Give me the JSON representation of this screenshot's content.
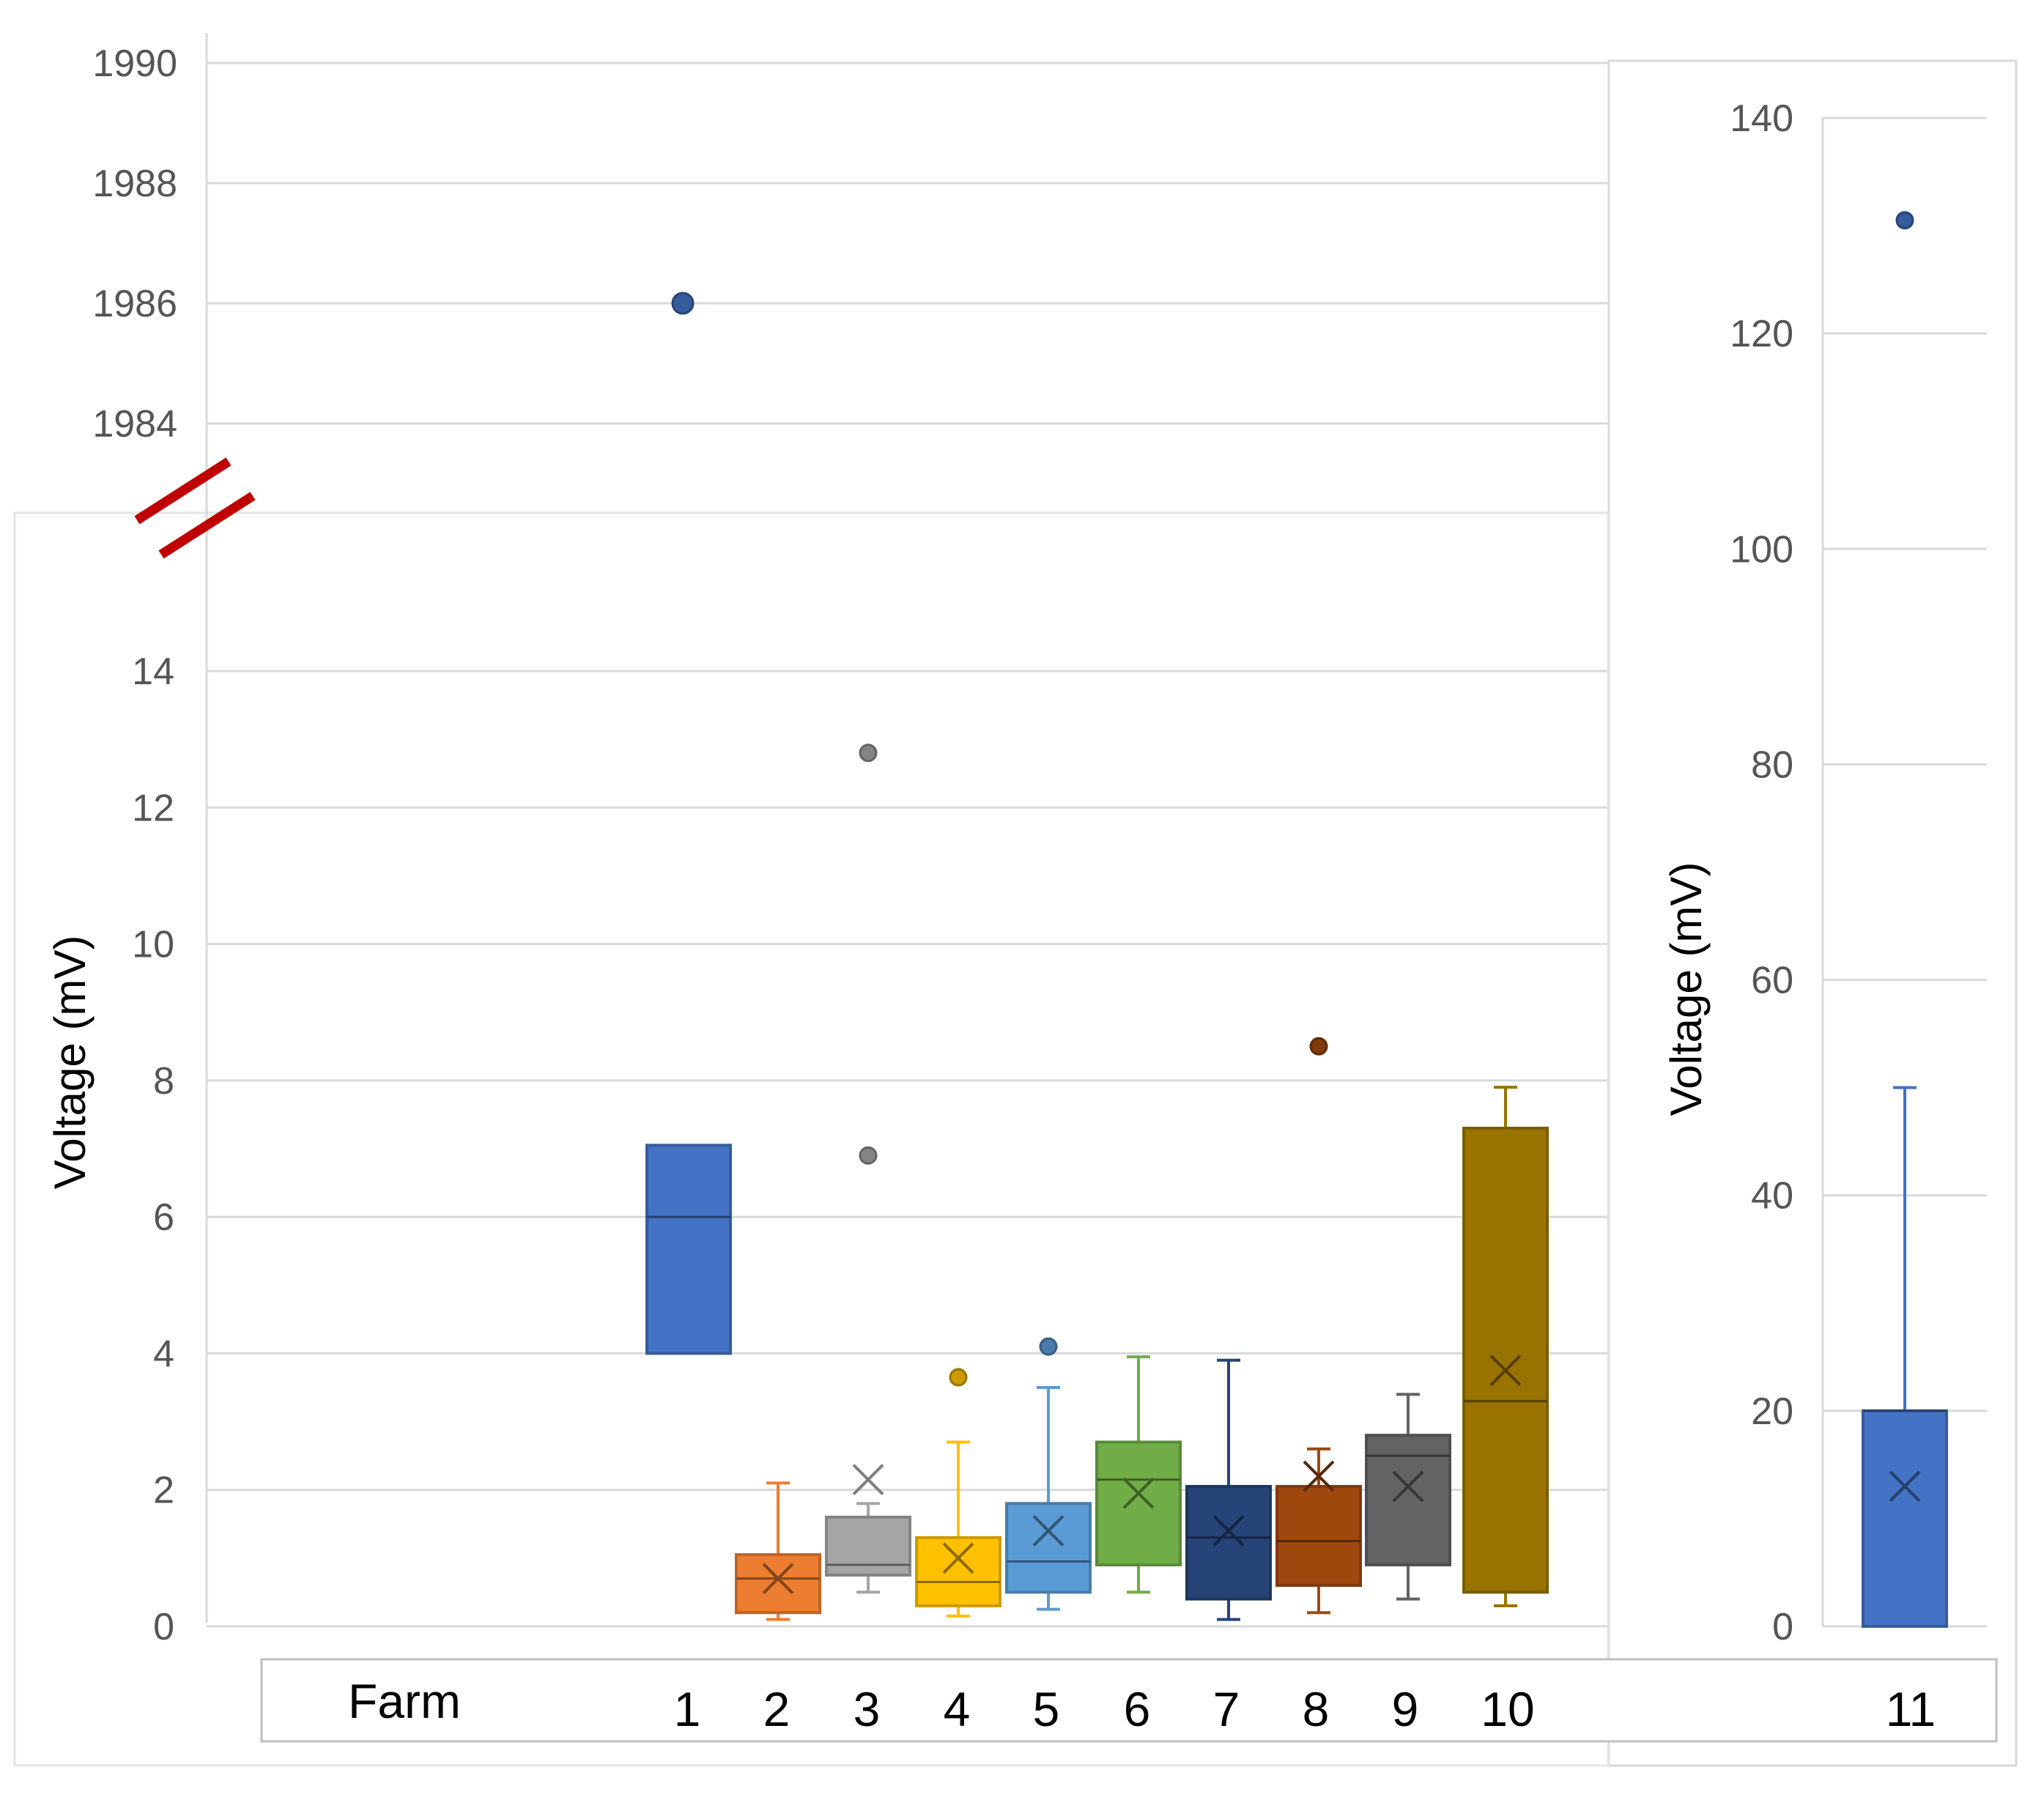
{
  "chart_data": [
    {
      "type": "box",
      "panel": "main",
      "x_axis_label": "Farm",
      "ylabel": "Voltage (mV)",
      "broken_axis": true,
      "upper_segment": {
        "ylim": [
          1983,
          1990
        ],
        "ticks": [
          1984,
          1986,
          1988,
          1990
        ]
      },
      "lower_segment": {
        "ylim": [
          0,
          16
        ],
        "ticks": [
          0,
          2,
          4,
          6,
          8,
          10,
          12,
          14
        ]
      },
      "grid": true,
      "series": [
        {
          "category": "1",
          "color": "#4472C4",
          "q1": 4.0,
          "median": 6.0,
          "q3": 7.05,
          "whisker_low": 4.0,
          "whisker_high": 7.05,
          "mean": null,
          "outliers": [
            1986.0
          ]
        },
        {
          "category": "2",
          "color": "#ED7D31",
          "q1": 0.2,
          "median": 0.7,
          "q3": 1.05,
          "whisker_low": 0.1,
          "whisker_high": 2.1,
          "mean": 0.7,
          "outliers": []
        },
        {
          "category": "3",
          "color": "#A5A5A5",
          "q1": 0.75,
          "median": 0.9,
          "q3": 1.6,
          "whisker_low": 0.5,
          "whisker_high": 1.8,
          "mean": 2.15,
          "outliers": [
            6.9,
            12.8
          ]
        },
        {
          "category": "4",
          "color": "#FFC000",
          "q1": 0.3,
          "median": 0.65,
          "q3": 1.3,
          "whisker_low": 0.15,
          "whisker_high": 2.7,
          "mean": 1.0,
          "outliers": [
            3.65
          ]
        },
        {
          "category": "5",
          "color": "#5B9BD5",
          "q1": 0.5,
          "median": 0.95,
          "q3": 1.8,
          "whisker_low": 0.25,
          "whisker_high": 3.5,
          "mean": 1.4,
          "outliers": [
            4.1
          ]
        },
        {
          "category": "6",
          "color": "#70AD47",
          "q1": 0.9,
          "median": 2.15,
          "q3": 2.7,
          "whisker_low": 0.5,
          "whisker_high": 3.95,
          "mean": 1.95,
          "outliers": []
        },
        {
          "category": "7",
          "color": "#264478",
          "q1": 0.4,
          "median": 1.3,
          "q3": 2.05,
          "whisker_low": 0.1,
          "whisker_high": 3.9,
          "mean": 1.4,
          "outliers": []
        },
        {
          "category": "8",
          "color": "#9E480E",
          "q1": 0.6,
          "median": 1.25,
          "q3": 2.05,
          "whisker_low": 0.2,
          "whisker_high": 2.6,
          "mean": 2.2,
          "outliers": [
            8.5
          ]
        },
        {
          "category": "9",
          "color": "#636363",
          "q1": 0.9,
          "median": 2.5,
          "q3": 2.8,
          "whisker_low": 0.4,
          "whisker_high": 3.4,
          "mean": 2.05,
          "outliers": []
        },
        {
          "category": "10",
          "color": "#997300",
          "q1": 0.5,
          "median": 3.3,
          "q3": 7.3,
          "whisker_low": 0.3,
          "whisker_high": 7.9,
          "mean": 3.75,
          "outliers": []
        }
      ]
    },
    {
      "type": "box",
      "panel": "inset",
      "ylabel": "Voltage (mV)",
      "ylim": [
        0,
        140
      ],
      "ticks": [
        0,
        20,
        40,
        60,
        80,
        100,
        120,
        140
      ],
      "grid": true,
      "series": [
        {
          "category": "11",
          "color": "#4472C4",
          "q1": 0.0,
          "median": 20.0,
          "q3": 20.0,
          "whisker_low": 0.0,
          "whisker_high": 50.0,
          "mean": 13.0,
          "outliers": [
            130.5
          ]
        }
      ]
    }
  ],
  "break_mark_color": "#C00000"
}
